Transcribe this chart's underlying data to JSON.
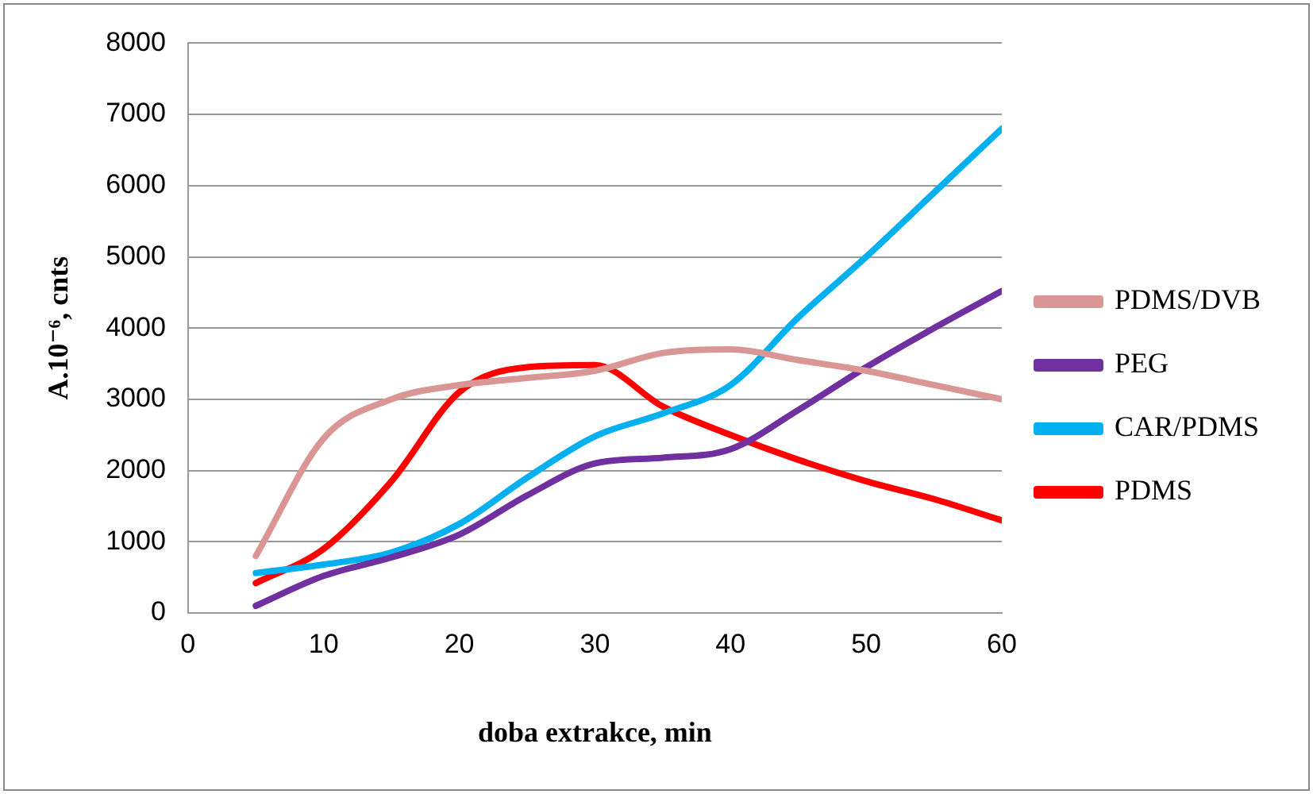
{
  "chart_data": {
    "type": "line",
    "xlabel": "doba extrakce, min",
    "ylabel": "A.10⁻⁶, cnts",
    "x": [
      5,
      10,
      15,
      20,
      25,
      30,
      35,
      40,
      45,
      50,
      55,
      60
    ],
    "xlim": [
      0,
      60
    ],
    "xticks": [
      0,
      10,
      20,
      30,
      40,
      50,
      60
    ],
    "ylim": [
      0,
      8000
    ],
    "yticks": [
      0,
      1000,
      2000,
      3000,
      4000,
      5000,
      6000,
      7000,
      8000
    ],
    "grid": "y",
    "legend": "right",
    "marker": "none",
    "line_style": "solid",
    "series": [
      {
        "name": "PDMS/DVB",
        "color": "#d99694",
        "values": [
          800,
          2450,
          3000,
          3200,
          3300,
          3400,
          3650,
          3700,
          3550,
          3400,
          3200,
          3000
        ]
      },
      {
        "name": "PEG",
        "color": "#7030a0",
        "values": [
          100,
          520,
          780,
          1100,
          1650,
          2100,
          2180,
          2300,
          2850,
          3450,
          4000,
          4520
        ]
      },
      {
        "name": "CAR/PDMS",
        "color": "#00b0f0",
        "values": [
          560,
          680,
          850,
          1250,
          1900,
          2480,
          2800,
          3200,
          4150,
          5000,
          5900,
          6800
        ]
      },
      {
        "name": "PDMS",
        "color": "#ff0000",
        "values": [
          420,
          900,
          1850,
          3100,
          3450,
          3480,
          2900,
          2500,
          2150,
          1850,
          1600,
          1300
        ]
      }
    ]
  }
}
